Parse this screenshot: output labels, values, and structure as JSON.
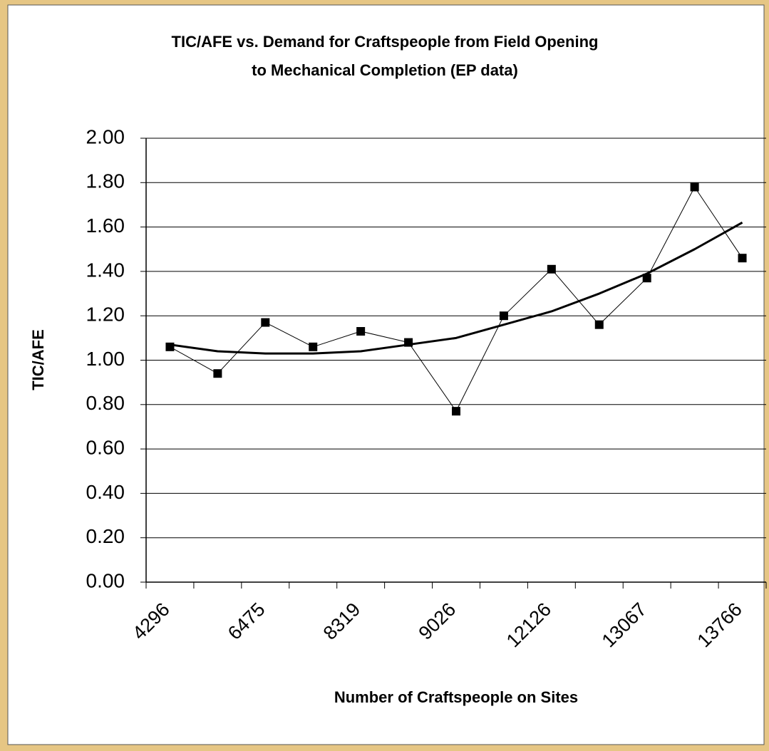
{
  "chart_data": {
    "type": "line",
    "title": [
      "TIC/AFE vs. Demand for Craftspeople from Field Opening",
      "to Mechanical Completion (EP data)"
    ],
    "x_label": "Number of Craftspeople on Sites",
    "y_label": "TIC/AFE",
    "categories": [
      "4296",
      null,
      "6475",
      null,
      "8319",
      null,
      "9026",
      null,
      "12126",
      null,
      "13067",
      null,
      "13766"
    ],
    "series": [
      {
        "color": "#000000",
        "line_width": 1,
        "markers": true,
        "values": [
          1.06,
          0.94,
          1.17,
          1.06,
          1.13,
          1.08,
          0.77,
          1.2,
          1.41,
          1.16,
          1.37,
          1.78,
          1.46
        ]
      },
      {
        "color": "#000000",
        "line_width": 3,
        "markers": false,
        "values": [
          1.07,
          1.04,
          1.03,
          1.03,
          1.04,
          1.07,
          1.1,
          1.16,
          1.22,
          1.3,
          1.39,
          1.5,
          1.62
        ]
      }
    ],
    "ylim": [
      0,
      2
    ],
    "yticks": [
      {
        "value": 0,
        "label": "0.00"
      },
      {
        "value": 0.2,
        "label": "0.20"
      },
      {
        "value": 0.4,
        "label": "0.40"
      },
      {
        "value": 0.6,
        "label": "0.60"
      },
      {
        "value": 0.8,
        "label": "0.80"
      },
      {
        "value": 1,
        "label": "1.00"
      },
      {
        "value": 1.2,
        "label": "1.20"
      },
      {
        "value": 1.4,
        "label": "1.40"
      },
      {
        "value": 1.6,
        "label": "1.60"
      },
      {
        "value": 1.8,
        "label": "1.80"
      },
      {
        "value": 2,
        "label": "2.00"
      }
    ],
    "grid": true
  }
}
